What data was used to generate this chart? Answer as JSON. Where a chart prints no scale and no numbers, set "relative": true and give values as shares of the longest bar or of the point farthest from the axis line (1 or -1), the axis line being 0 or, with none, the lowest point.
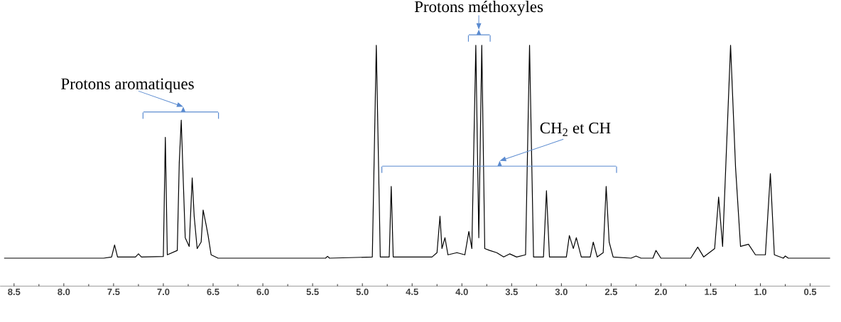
{
  "chart_data": {
    "type": "line",
    "relative": true,
    "color": "#000000",
    "marker": "none",
    "line_style": "solid",
    "xlim": [
      8.64,
      0.3
    ],
    "xticks": [
      {
        "value": 8.5,
        "label": "8.5"
      },
      {
        "value": 8,
        "label": "8.0"
      },
      {
        "value": 7.5,
        "label": "7.5"
      },
      {
        "value": 7,
        "label": "7.0"
      },
      {
        "value": 6.5,
        "label": "6.5"
      },
      {
        "value": 6,
        "label": "6.0"
      },
      {
        "value": 5.5,
        "label": "5.5"
      },
      {
        "value": 5,
        "label": "5.0"
      },
      {
        "value": 4.5,
        "label": "4.5"
      },
      {
        "value": 4,
        "label": "4.0"
      },
      {
        "value": 3.5,
        "label": "3.5"
      },
      {
        "value": 3,
        "label": "3.0"
      },
      {
        "value": 2.5,
        "label": "2.5"
      },
      {
        "value": 2,
        "label": "2.0"
      },
      {
        "value": 1.5,
        "label": "1.5"
      },
      {
        "value": 1,
        "label": "1.0"
      },
      {
        "value": 0.5,
        "label": "0.5"
      }
    ],
    "x": [
      8.6,
      7.6,
      7.52,
      7.49,
      7.46,
      7.28,
      7.25,
      7.22,
      7.0,
      6.98,
      6.96,
      6.86,
      6.84,
      6.82,
      6.8,
      6.78,
      6.74,
      6.71,
      6.69,
      6.66,
      6.62,
      6.6,
      6.57,
      6.55,
      6.52,
      6.45,
      5.37,
      5.35,
      5.33,
      4.9,
      4.86,
      4.82,
      4.73,
      4.71,
      4.69,
      4.3,
      4.25,
      4.22,
      4.2,
      4.17,
      4.14,
      4.05,
      3.97,
      3.93,
      3.9,
      3.86,
      3.83,
      3.8,
      3.77,
      3.72,
      3.65,
      3.58,
      3.52,
      3.45,
      3.36,
      3.32,
      3.28,
      3.18,
      3.15,
      3.12,
      2.95,
      2.92,
      2.88,
      2.85,
      2.8,
      2.71,
      2.68,
      2.64,
      2.58,
      2.55,
      2.52,
      2.48,
      2.3,
      2.25,
      2.2,
      2.08,
      2.05,
      2.0,
      1.7,
      1.63,
      1.57,
      1.46,
      1.42,
      1.38,
      1.3,
      1.25,
      1.2,
      1.12,
      1.05,
      0.95,
      0.9,
      0.86,
      0.77,
      0.75,
      0.72,
      0.3
    ],
    "values": [
      0.116,
      0.116,
      0.121,
      0.171,
      0.121,
      0.121,
      0.134,
      0.121,
      0.123,
      0.618,
      0.13,
      0.148,
      0.512,
      0.689,
      0.441,
      0.201,
      0.165,
      0.449,
      0.29,
      0.156,
      0.183,
      0.316,
      0.254,
      0.21,
      0.13,
      0.116,
      0.116,
      0.124,
      0.116,
      0.121,
      1,
      0.121,
      0.121,
      0.414,
      0.121,
      0.121,
      0.139,
      0.29,
      0.156,
      0.201,
      0.13,
      0.139,
      0.13,
      0.227,
      0.156,
      1,
      0.201,
      1,
      0.156,
      0.148,
      0.139,
      0.121,
      0.134,
      0.121,
      0.13,
      1,
      0.121,
      0.121,
      0.396,
      0.121,
      0.121,
      0.21,
      0.156,
      0.201,
      0.121,
      0.121,
      0.183,
      0.121,
      0.139,
      0.414,
      0.183,
      0.121,
      0.116,
      0.125,
      0.116,
      0.116,
      0.148,
      0.116,
      0.116,
      0.162,
      0.121,
      0.156,
      0.37,
      0.165,
      1,
      0.494,
      0.165,
      0.174,
      0.13,
      0.13,
      0.467,
      0.13,
      0.116,
      0.125,
      0.116,
      0.116
    ],
    "annotations": [
      "Protons aromatiques",
      "Protons méthoxyles",
      "CH$_{2}$ et CH"
    ]
  }
}
